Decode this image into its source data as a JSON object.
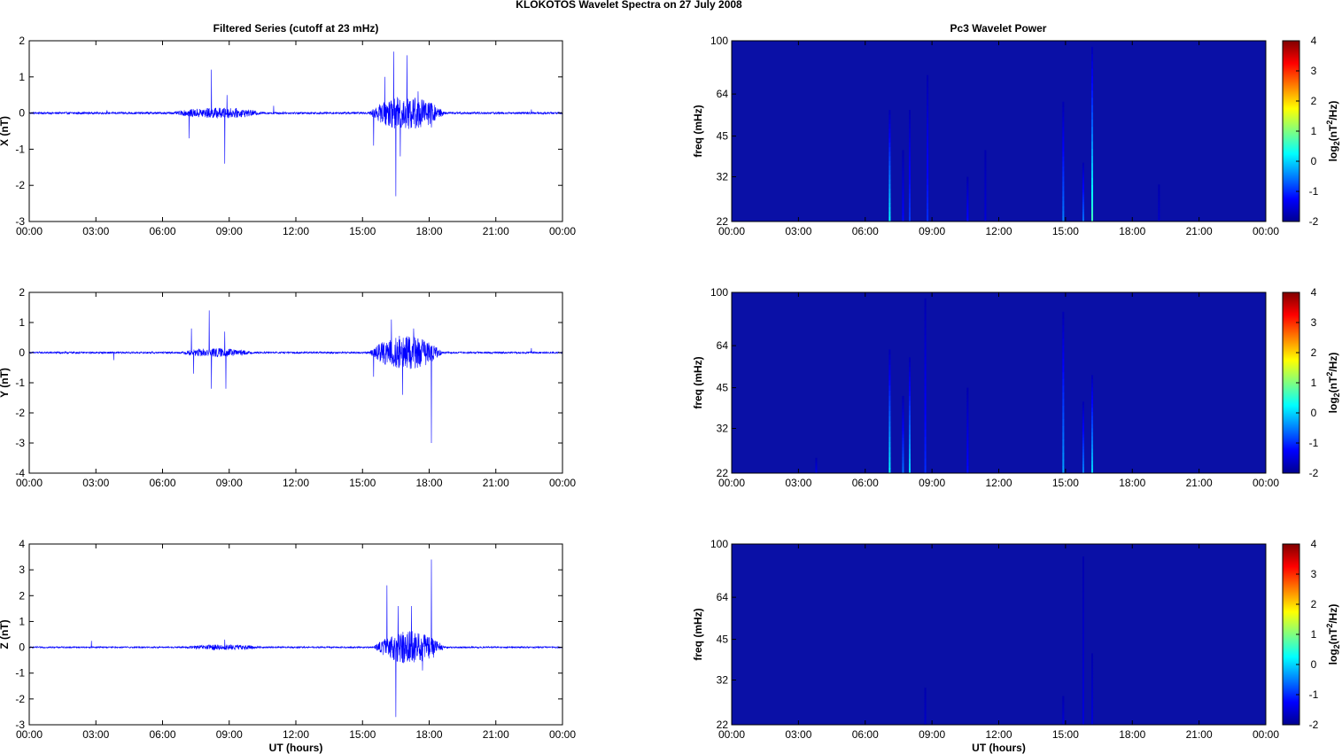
{
  "figure": {
    "suptitle": "KLOKOTOS Wavelet Spectra on 27 July      2008",
    "left_column_title": "Filtered Series (cutoff at 23 mHz)",
    "right_column_title": "Pc3 Wavelet Power",
    "colors": {
      "trace": "#0000ff",
      "spectrogram_background": "#0a10a6"
    }
  },
  "chart_data": [
    {
      "type": "line",
      "id": "x-series",
      "ylabel": "X (nT)",
      "xlabel": "",
      "xlim_hours": [
        0,
        24
      ],
      "ylim": [
        -3,
        2
      ],
      "yticks": [
        "-3",
        "-2",
        "-1",
        "0",
        "1",
        "2"
      ],
      "xticks": [
        "00:00",
        "03:00",
        "06:00",
        "09:00",
        "12:00",
        "15:00",
        "18:00",
        "21:00",
        "00:00"
      ],
      "baseline_noise_nT": 0.03,
      "bursts": [
        {
          "t_hours": 3.5,
          "amp_nT": 0.08
        },
        {
          "t_hours": 7.2,
          "amp_nT": -0.7
        },
        {
          "t_hours": 8.2,
          "amp_nT": 1.2
        },
        {
          "t_hours": 8.8,
          "amp_nT": -1.4
        },
        {
          "t_hours": 8.9,
          "amp_nT": 0.5
        },
        {
          "t_hours": 11.0,
          "amp_nT": 0.2
        },
        {
          "t_hours": 15.5,
          "amp_nT": -0.9
        },
        {
          "t_hours": 16.0,
          "amp_nT": 1.0
        },
        {
          "t_hours": 16.4,
          "amp_nT": 1.7
        },
        {
          "t_hours": 16.5,
          "amp_nT": -2.3
        },
        {
          "t_hours": 16.7,
          "amp_nT": -1.2
        },
        {
          "t_hours": 17.0,
          "amp_nT": 1.6
        },
        {
          "t_hours": 17.5,
          "amp_nT": 0.6
        },
        {
          "t_hours": 18.1,
          "amp_nT": -0.4
        },
        {
          "t_hours": 22.6,
          "amp_nT": 0.1
        }
      ],
      "activity_envelope": [
        {
          "start": 6.5,
          "end": 10.5,
          "amp_nT": 0.12
        },
        {
          "start": 15.3,
          "end": 18.7,
          "amp_nT": 0.45
        }
      ]
    },
    {
      "type": "line",
      "id": "y-series",
      "ylabel": "Y (nT)",
      "xlabel": "",
      "xlim_hours": [
        0,
        24
      ],
      "ylim": [
        -4,
        2
      ],
      "yticks": [
        "-4",
        "-3",
        "-2",
        "-1",
        "0",
        "1",
        "2"
      ],
      "xticks": [
        "00:00",
        "03:00",
        "06:00",
        "09:00",
        "12:00",
        "15:00",
        "18:00",
        "21:00",
        "00:00"
      ],
      "baseline_noise_nT": 0.03,
      "bursts": [
        {
          "t_hours": 3.8,
          "amp_nT": -0.25
        },
        {
          "t_hours": 7.3,
          "amp_nT": 0.8
        },
        {
          "t_hours": 7.4,
          "amp_nT": -0.7
        },
        {
          "t_hours": 8.1,
          "amp_nT": 1.4
        },
        {
          "t_hours": 8.2,
          "amp_nT": -1.2
        },
        {
          "t_hours": 8.85,
          "amp_nT": -1.2
        },
        {
          "t_hours": 8.8,
          "amp_nT": 0.7
        },
        {
          "t_hours": 15.5,
          "amp_nT": -0.8
        },
        {
          "t_hours": 16.3,
          "amp_nT": 1.1
        },
        {
          "t_hours": 16.8,
          "amp_nT": -1.4
        },
        {
          "t_hours": 17.3,
          "amp_nT": 0.8
        },
        {
          "t_hours": 18.1,
          "amp_nT": -3.0
        },
        {
          "t_hours": 22.6,
          "amp_nT": 0.15
        }
      ],
      "activity_envelope": [
        {
          "start": 6.8,
          "end": 10.0,
          "amp_nT": 0.12
        },
        {
          "start": 15.3,
          "end": 18.6,
          "amp_nT": 0.55
        }
      ]
    },
    {
      "type": "line",
      "id": "z-series",
      "ylabel": "Z (nT)",
      "xlabel": "UT (hours)",
      "xlim_hours": [
        0,
        24
      ],
      "ylim": [
        -3,
        4
      ],
      "yticks": [
        "-3",
        "-2",
        "-1",
        "0",
        "1",
        "2",
        "3",
        "4"
      ],
      "xticks": [
        "00:00",
        "03:00",
        "06:00",
        "09:00",
        "12:00",
        "15:00",
        "18:00",
        "21:00",
        "00:00"
      ],
      "baseline_noise_nT": 0.03,
      "bursts": [
        {
          "t_hours": 2.8,
          "amp_nT": 0.25
        },
        {
          "t_hours": 8.8,
          "amp_nT": -0.65
        },
        {
          "t_hours": 8.8,
          "amp_nT": 0.3
        },
        {
          "t_hours": 16.1,
          "amp_nT": 2.4
        },
        {
          "t_hours": 16.5,
          "amp_nT": -2.7
        },
        {
          "t_hours": 16.6,
          "amp_nT": 1.6
        },
        {
          "t_hours": 17.2,
          "amp_nT": 1.6
        },
        {
          "t_hours": 17.7,
          "amp_nT": -0.9
        },
        {
          "t_hours": 18.1,
          "amp_nT": 3.4
        },
        {
          "t_hours": 18.2,
          "amp_nT": -0.4
        }
      ],
      "activity_envelope": [
        {
          "start": 7.0,
          "end": 10.5,
          "amp_nT": 0.08
        },
        {
          "start": 15.5,
          "end": 18.7,
          "amp_nT": 0.6
        }
      ]
    },
    {
      "type": "heatmap",
      "id": "x-wavelet",
      "ylabel": "freq (mHz)",
      "xlabel": "",
      "xlim_hours": [
        0,
        24
      ],
      "ylim_mHz": [
        22,
        100
      ],
      "yscale": "log",
      "yticks": [
        "22",
        "32",
        "45",
        "64",
        "100"
      ],
      "xticks": [
        "00:00",
        "03:00",
        "06:00",
        "09:00",
        "12:00",
        "15:00",
        "18:00",
        "21:00",
        "00:00"
      ],
      "colorbar_label": "log2(nT2/Hz)",
      "clim": [
        -2,
        4
      ],
      "colorbar_ticks": [
        "-2",
        "-1",
        "0",
        "1",
        "2",
        "3",
        "4"
      ],
      "background_log2_power": -1.8,
      "streaks": [
        {
          "t_hours": 7.1,
          "top_mHz": 56,
          "peak_log2": 0.2
        },
        {
          "t_hours": 7.7,
          "top_mHz": 40,
          "peak_log2": -1.2
        },
        {
          "t_hours": 8.0,
          "top_mHz": 56,
          "peak_log2": -0.9
        },
        {
          "t_hours": 8.8,
          "top_mHz": 75,
          "peak_log2": -1.0
        },
        {
          "t_hours": 10.6,
          "top_mHz": 32,
          "peak_log2": -1.2
        },
        {
          "t_hours": 11.4,
          "top_mHz": 40,
          "peak_log2": -1.5
        },
        {
          "t_hours": 14.9,
          "top_mHz": 60,
          "peak_log2": -0.5
        },
        {
          "t_hours": 15.8,
          "top_mHz": 36,
          "peak_log2": -0.6
        },
        {
          "t_hours": 16.2,
          "top_mHz": 95,
          "peak_log2": 0.6
        },
        {
          "t_hours": 19.2,
          "top_mHz": 30,
          "peak_log2": -1.6
        }
      ]
    },
    {
      "type": "heatmap",
      "id": "y-wavelet",
      "ylabel": "freq (mHz)",
      "xlabel": "",
      "xlim_hours": [
        0,
        24
      ],
      "ylim_mHz": [
        22,
        100
      ],
      "yscale": "log",
      "yticks": [
        "22",
        "32",
        "45",
        "64",
        "100"
      ],
      "xticks": [
        "00:00",
        "03:00",
        "06:00",
        "09:00",
        "12:00",
        "15:00",
        "18:00",
        "21:00",
        "00:00"
      ],
      "colorbar_label": "log2(nT2/Hz)",
      "clim": [
        -2,
        4
      ],
      "colorbar_ticks": [
        "-2",
        "-1",
        "0",
        "1",
        "2",
        "3",
        "4"
      ],
      "background_log2_power": -1.8,
      "streaks": [
        {
          "t_hours": 3.8,
          "top_mHz": 25,
          "peak_log2": -1.4
        },
        {
          "t_hours": 7.1,
          "top_mHz": 62,
          "peak_log2": 0.2
        },
        {
          "t_hours": 7.7,
          "top_mHz": 42,
          "peak_log2": -0.6
        },
        {
          "t_hours": 8.0,
          "top_mHz": 58,
          "peak_log2": 0.0
        },
        {
          "t_hours": 8.7,
          "top_mHz": 95,
          "peak_log2": -1.0
        },
        {
          "t_hours": 10.6,
          "top_mHz": 45,
          "peak_log2": -1.2
        },
        {
          "t_hours": 14.9,
          "top_mHz": 85,
          "peak_log2": -0.3
        },
        {
          "t_hours": 15.8,
          "top_mHz": 40,
          "peak_log2": -0.5
        },
        {
          "t_hours": 16.2,
          "top_mHz": 50,
          "peak_log2": 0.0
        }
      ]
    },
    {
      "type": "heatmap",
      "id": "z-wavelet",
      "ylabel": "freq (mHz)",
      "xlabel": "UT (hours)",
      "xlim_hours": [
        0,
        24
      ],
      "ylim_mHz": [
        22,
        100
      ],
      "yscale": "log",
      "yticks": [
        "22",
        "32",
        "45",
        "64",
        "100"
      ],
      "xticks": [
        "00:00",
        "03:00",
        "06:00",
        "09:00",
        "12:00",
        "15:00",
        "18:00",
        "21:00",
        "00:00"
      ],
      "colorbar_label": "log2(nT2/Hz)",
      "clim": [
        -2,
        4
      ],
      "colorbar_ticks": [
        "-2",
        "-1",
        "0",
        "1",
        "2",
        "3",
        "4"
      ],
      "background_log2_power": -1.8,
      "streaks": [
        {
          "t_hours": 8.7,
          "top_mHz": 30,
          "peak_log2": -1.6
        },
        {
          "t_hours": 14.9,
          "top_mHz": 28,
          "peak_log2": -1.5
        },
        {
          "t_hours": 15.8,
          "top_mHz": 90,
          "peak_log2": -1.5
        },
        {
          "t_hours": 16.2,
          "top_mHz": 40,
          "peak_log2": -1.5
        }
      ]
    }
  ]
}
